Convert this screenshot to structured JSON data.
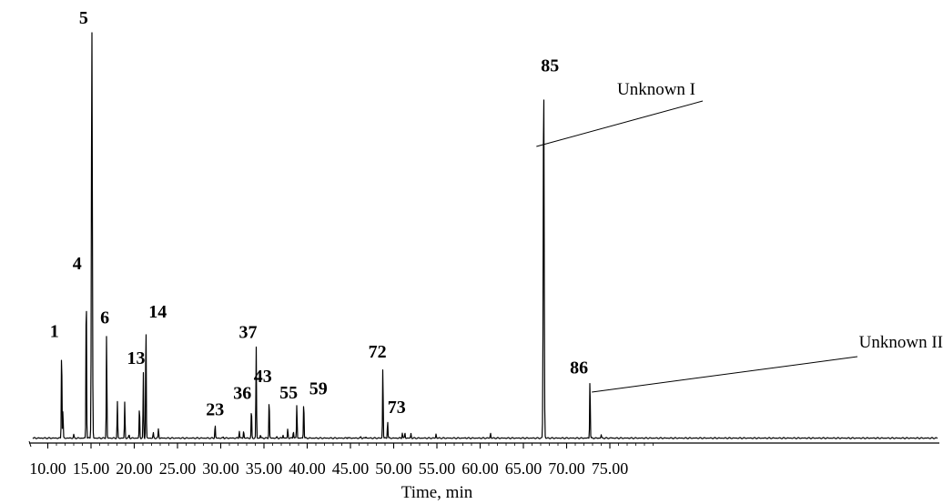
{
  "chart_data": {
    "type": "line",
    "xlabel": "Time, min",
    "xlim": [
      10.0,
      80.0
    ],
    "ylim": [
      0,
      100
    ],
    "grid": false,
    "legend": "none",
    "x_tick_labels": [
      "10.00",
      "15.00",
      "20.00",
      "25.00",
      "30.00",
      "35.00",
      "40.00",
      "45.00",
      "50.00",
      "55.00",
      "60.00",
      "65.00",
      "70.00",
      "75.00"
    ],
    "x_ticks": [
      10,
      15,
      20,
      25,
      30,
      35,
      40,
      45,
      50,
      55,
      60,
      65,
      70,
      75
    ],
    "baseline": 1.2,
    "peaks": [
      {
        "label": "1",
        "x": 11.6,
        "y": 24
      },
      {
        "label": "",
        "x": 11.75,
        "y": 8
      },
      {
        "label": "",
        "x": 13.0,
        "y": 2
      },
      {
        "label": "4",
        "x": 14.45,
        "y": 40
      },
      {
        "label": "5",
        "x": 15.1,
        "y": 100
      },
      {
        "label": "6",
        "x": 16.8,
        "y": 27
      },
      {
        "label": "",
        "x": 18.05,
        "y": 10
      },
      {
        "label": "",
        "x": 18.9,
        "y": 10
      },
      {
        "label": "",
        "x": 19.4,
        "y": 2
      },
      {
        "label": "",
        "x": 20.6,
        "y": 9
      },
      {
        "label": "13",
        "x": 21.05,
        "y": 17
      },
      {
        "label": "14",
        "x": 21.35,
        "y": 30
      },
      {
        "label": "",
        "x": 22.2,
        "y": 2.5
      },
      {
        "label": "",
        "x": 22.8,
        "y": 3.5
      },
      {
        "label": "23",
        "x": 29.35,
        "y": 4.5
      },
      {
        "label": "",
        "x": 30.3,
        "y": 1.5
      },
      {
        "label": "",
        "x": 32.15,
        "y": 3
      },
      {
        "label": "",
        "x": 32.65,
        "y": 3
      },
      {
        "label": "36",
        "x": 33.55,
        "y": 8.5
      },
      {
        "label": "37",
        "x": 34.1,
        "y": 23.5
      },
      {
        "label": "",
        "x": 34.6,
        "y": 2
      },
      {
        "label": "43",
        "x": 35.6,
        "y": 11
      },
      {
        "label": "",
        "x": 36.5,
        "y": 1.5
      },
      {
        "label": "",
        "x": 37.2,
        "y": 2
      },
      {
        "label": "",
        "x": 37.75,
        "y": 3.5
      },
      {
        "label": "",
        "x": 38.4,
        "y": 3
      },
      {
        "label": "55",
        "x": 38.8,
        "y": 9.5
      },
      {
        "label": "59",
        "x": 39.6,
        "y": 10.5
      },
      {
        "label": "",
        "x": 44.7,
        "y": 1.5
      },
      {
        "label": "",
        "x": 46.2,
        "y": 1.5
      },
      {
        "label": "",
        "x": 46.8,
        "y": 1.5
      },
      {
        "label": "72",
        "x": 48.75,
        "y": 19
      },
      {
        "label": "73",
        "x": 49.3,
        "y": 5.5
      },
      {
        "label": "",
        "x": 51.0,
        "y": 2.5
      },
      {
        "label": "",
        "x": 51.3,
        "y": 2.5
      },
      {
        "label": "",
        "x": 52.0,
        "y": 2.3
      },
      {
        "label": "",
        "x": 54.9,
        "y": 2.2
      },
      {
        "label": "",
        "x": 58.3,
        "y": 1.3
      },
      {
        "label": "",
        "x": 61.2,
        "y": 2.4
      },
      {
        "label": "85",
        "x": 67.35,
        "y": 88
      },
      {
        "label": "86",
        "x": 72.7,
        "y": 16
      },
      {
        "label": "",
        "x": 74.0,
        "y": 2
      },
      {
        "label": "",
        "x": 75.2,
        "y": 1.3
      }
    ],
    "annotations": [
      {
        "text": "Unknown I",
        "peak": "85"
      },
      {
        "text": "Unknown II",
        "peak": "86"
      }
    ]
  }
}
